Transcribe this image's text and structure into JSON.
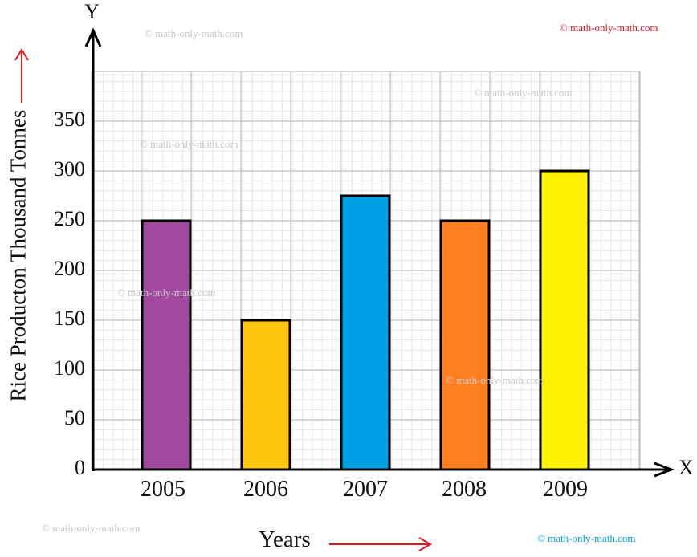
{
  "chart_data": {
    "type": "bar",
    "title": "",
    "xlabel": "Years",
    "ylabel": "Rice Producton Thousand Tonnes",
    "categories": [
      "2005",
      "2006",
      "2007",
      "2008",
      "2009"
    ],
    "values": [
      250,
      150,
      275,
      250,
      300
    ],
    "bar_colors": [
      "#a0499e",
      "#fec60d",
      "#00a0e4",
      "#fe7f22",
      "#fef200"
    ],
    "ylim": [
      0,
      400
    ],
    "yticks": [
      "0",
      "50",
      "100",
      "150",
      "200",
      "250",
      "300",
      "350"
    ],
    "grid": true,
    "legend": null
  },
  "axes": {
    "x_letter": "X",
    "y_letter": "Y",
    "arrow_color": "#e8141c"
  },
  "watermarks": [
    {
      "text": "© math-only-math.com",
      "color": "#c8c8c8"
    },
    {
      "text": "© math-only-math.com",
      "color": "#e8141c"
    },
    {
      "text": "© math-only-math.com",
      "color": "#c8c8c8"
    },
    {
      "text": "© math-only-math.com",
      "color": "#c8c8c8"
    },
    {
      "text": "© math-only-math.com",
      "color": "#c8c8c8"
    },
    {
      "text": "© math-only-math.com",
      "color": "#c8c8c8"
    },
    {
      "text": "© math-only-math.com",
      "color": "#c8c8c8"
    },
    {
      "text": "© math-only-math.com",
      "color": "#00a0e4"
    }
  ]
}
